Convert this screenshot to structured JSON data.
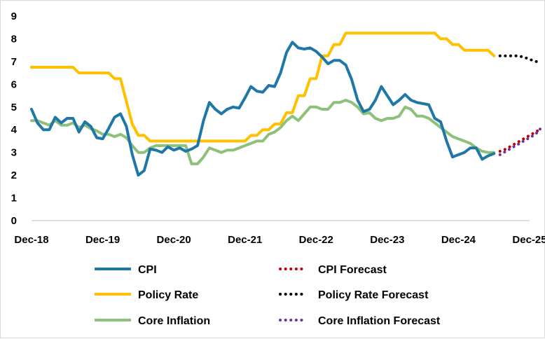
{
  "chart_data": {
    "type": "line",
    "title": "",
    "xlabel": "",
    "ylabel": "",
    "x_start": "2018-12",
    "x_ticks": [
      "Dec-18",
      "Dec-19",
      "Dec-20",
      "Dec-21",
      "Dec-22",
      "Dec-23",
      "Dec-24",
      "Dec-25"
    ],
    "y_ticks": [
      "0",
      "1",
      "2",
      "3",
      "4",
      "5",
      "6",
      "7",
      "8",
      "9"
    ],
    "ylim": [
      0,
      9
    ],
    "grid": false,
    "legend_position": "bottom",
    "series": [
      {
        "name": "CPI",
        "color": "#1f77a8",
        "style": "solid",
        "points": [
          [
            "2018-12",
            4.9
          ],
          [
            "2019-01",
            4.3
          ],
          [
            "2019-02",
            4.0
          ],
          [
            "2019-03",
            4.0
          ],
          [
            "2019-04",
            4.55
          ],
          [
            "2019-05",
            4.3
          ],
          [
            "2019-06",
            4.5
          ],
          [
            "2019-07",
            4.5
          ],
          [
            "2019-08",
            3.9
          ],
          [
            "2019-09",
            4.35
          ],
          [
            "2019-10",
            4.15
          ],
          [
            "2019-11",
            3.65
          ],
          [
            "2019-12",
            3.6
          ],
          [
            "2020-01",
            4.05
          ],
          [
            "2020-02",
            4.55
          ],
          [
            "2020-03",
            4.7
          ],
          [
            "2020-04",
            4.15
          ],
          [
            "2020-05",
            2.9
          ],
          [
            "2020-06",
            2.0
          ],
          [
            "2020-07",
            2.2
          ],
          [
            "2020-08",
            3.15
          ],
          [
            "2020-09",
            3.1
          ],
          [
            "2020-10",
            3.0
          ],
          [
            "2020-11",
            3.25
          ],
          [
            "2020-12",
            3.1
          ],
          [
            "2021-01",
            3.2
          ],
          [
            "2021-02",
            3.05
          ],
          [
            "2021-03",
            3.15
          ],
          [
            "2021-04",
            3.3
          ],
          [
            "2021-05",
            4.4
          ],
          [
            "2021-06",
            5.2
          ],
          [
            "2021-07",
            4.9
          ],
          [
            "2021-08",
            4.7
          ],
          [
            "2021-09",
            4.9
          ],
          [
            "2021-10",
            5.0
          ],
          [
            "2021-11",
            4.95
          ],
          [
            "2021-12",
            5.4
          ],
          [
            "2022-01",
            5.9
          ],
          [
            "2022-02",
            5.7
          ],
          [
            "2022-03",
            5.65
          ],
          [
            "2022-04",
            5.95
          ],
          [
            "2022-05",
            5.9
          ],
          [
            "2022-06",
            6.5
          ],
          [
            "2022-07",
            7.4
          ],
          [
            "2022-08",
            7.85
          ],
          [
            "2022-09",
            7.6
          ],
          [
            "2022-10",
            7.55
          ],
          [
            "2022-11",
            7.6
          ],
          [
            "2022-12",
            7.45
          ],
          [
            "2023-01",
            7.2
          ],
          [
            "2023-02",
            6.9
          ],
          [
            "2023-03",
            7.05
          ],
          [
            "2023-04",
            7.05
          ],
          [
            "2023-05",
            6.85
          ],
          [
            "2023-06",
            6.2
          ],
          [
            "2023-07",
            5.3
          ],
          [
            "2023-08",
            4.8
          ],
          [
            "2023-09",
            4.9
          ],
          [
            "2023-10",
            5.3
          ],
          [
            "2023-11",
            5.9
          ],
          [
            "2023-12",
            5.5
          ],
          [
            "2024-01",
            5.1
          ],
          [
            "2024-02",
            5.3
          ],
          [
            "2024-03",
            5.55
          ],
          [
            "2024-04",
            5.3
          ],
          [
            "2024-05",
            5.2
          ],
          [
            "2024-06",
            5.15
          ],
          [
            "2024-07",
            5.1
          ],
          [
            "2024-08",
            4.5
          ],
          [
            "2024-09",
            4.35
          ],
          [
            "2024-10",
            3.5
          ],
          [
            "2024-11",
            2.8
          ],
          [
            "2024-12",
            2.9
          ],
          [
            "2025-01",
            3.0
          ],
          [
            "2025-02",
            3.2
          ],
          [
            "2025-03",
            3.2
          ],
          [
            "2025-04",
            2.7
          ],
          [
            "2025-05",
            2.85
          ],
          [
            "2025-06",
            2.95
          ]
        ]
      },
      {
        "name": "Policy Rate",
        "color": "#ffc000",
        "style": "solid",
        "points": [
          [
            "2018-12",
            6.75
          ],
          [
            "2019-01",
            6.75
          ],
          [
            "2019-02",
            6.75
          ],
          [
            "2019-03",
            6.75
          ],
          [
            "2019-04",
            6.75
          ],
          [
            "2019-05",
            6.75
          ],
          [
            "2019-06",
            6.75
          ],
          [
            "2019-07",
            6.75
          ],
          [
            "2019-08",
            6.5
          ],
          [
            "2019-09",
            6.5
          ],
          [
            "2019-10",
            6.5
          ],
          [
            "2019-11",
            6.5
          ],
          [
            "2019-12",
            6.5
          ],
          [
            "2020-01",
            6.5
          ],
          [
            "2020-02",
            6.25
          ],
          [
            "2020-03",
            6.25
          ],
          [
            "2020-04",
            5.25
          ],
          [
            "2020-05",
            4.25
          ],
          [
            "2020-06",
            3.75
          ],
          [
            "2020-07",
            3.75
          ],
          [
            "2020-08",
            3.5
          ],
          [
            "2020-09",
            3.5
          ],
          [
            "2020-10",
            3.5
          ],
          [
            "2020-11",
            3.5
          ],
          [
            "2020-12",
            3.5
          ],
          [
            "2021-01",
            3.5
          ],
          [
            "2021-02",
            3.5
          ],
          [
            "2021-03",
            3.5
          ],
          [
            "2021-04",
            3.5
          ],
          [
            "2021-05",
            3.5
          ],
          [
            "2021-06",
            3.5
          ],
          [
            "2021-07",
            3.5
          ],
          [
            "2021-08",
            3.5
          ],
          [
            "2021-09",
            3.5
          ],
          [
            "2021-10",
            3.5
          ],
          [
            "2021-11",
            3.5
          ],
          [
            "2021-12",
            3.5
          ],
          [
            "2022-01",
            3.75
          ],
          [
            "2022-02",
            3.75
          ],
          [
            "2022-03",
            4.0
          ],
          [
            "2022-04",
            4.0
          ],
          [
            "2022-05",
            4.25
          ],
          [
            "2022-06",
            4.25
          ],
          [
            "2022-07",
            4.75
          ],
          [
            "2022-08",
            4.75
          ],
          [
            "2022-09",
            5.5
          ],
          [
            "2022-10",
            5.5
          ],
          [
            "2022-11",
            6.25
          ],
          [
            "2022-12",
            6.25
          ],
          [
            "2023-01",
            7.25
          ],
          [
            "2023-02",
            7.25
          ],
          [
            "2023-03",
            7.75
          ],
          [
            "2023-04",
            7.75
          ],
          [
            "2023-05",
            8.25
          ],
          [
            "2023-06",
            8.25
          ],
          [
            "2023-07",
            8.25
          ],
          [
            "2023-08",
            8.25
          ],
          [
            "2023-09",
            8.25
          ],
          [
            "2023-10",
            8.25
          ],
          [
            "2023-11",
            8.25
          ],
          [
            "2023-12",
            8.25
          ],
          [
            "2024-01",
            8.25
          ],
          [
            "2024-02",
            8.25
          ],
          [
            "2024-03",
            8.25
          ],
          [
            "2024-04",
            8.25
          ],
          [
            "2024-05",
            8.25
          ],
          [
            "2024-06",
            8.25
          ],
          [
            "2024-07",
            8.25
          ],
          [
            "2024-08",
            8.25
          ],
          [
            "2024-09",
            8.0
          ],
          [
            "2024-10",
            8.0
          ],
          [
            "2024-11",
            7.75
          ],
          [
            "2024-12",
            7.75
          ],
          [
            "2025-01",
            7.5
          ],
          [
            "2025-02",
            7.5
          ],
          [
            "2025-03",
            7.5
          ],
          [
            "2025-04",
            7.5
          ],
          [
            "2025-05",
            7.5
          ],
          [
            "2025-06",
            7.25
          ]
        ]
      },
      {
        "name": "Core Inflation",
        "color": "#8dc07a",
        "style": "solid",
        "points": [
          [
            "2018-12",
            4.4
          ],
          [
            "2019-01",
            4.4
          ],
          [
            "2019-02",
            4.3
          ],
          [
            "2019-03",
            4.2
          ],
          [
            "2019-04",
            4.4
          ],
          [
            "2019-05",
            4.2
          ],
          [
            "2019-06",
            4.2
          ],
          [
            "2019-07",
            4.3
          ],
          [
            "2019-08",
            4.1
          ],
          [
            "2019-09",
            4.2
          ],
          [
            "2019-10",
            4.05
          ],
          [
            "2019-11",
            3.95
          ],
          [
            "2019-12",
            3.8
          ],
          [
            "2020-01",
            3.8
          ],
          [
            "2020-02",
            3.7
          ],
          [
            "2020-03",
            3.8
          ],
          [
            "2020-04",
            3.65
          ],
          [
            "2020-05",
            3.3
          ],
          [
            "2020-06",
            3.0
          ],
          [
            "2020-07",
            3.0
          ],
          [
            "2020-08",
            3.2
          ],
          [
            "2020-09",
            3.3
          ],
          [
            "2020-10",
            3.3
          ],
          [
            "2020-11",
            3.3
          ],
          [
            "2020-12",
            3.3
          ],
          [
            "2021-01",
            3.3
          ],
          [
            "2021-02",
            3.3
          ],
          [
            "2021-03",
            2.5
          ],
          [
            "2021-04",
            2.5
          ],
          [
            "2021-05",
            2.8
          ],
          [
            "2021-06",
            3.2
          ],
          [
            "2021-07",
            3.1
          ],
          [
            "2021-08",
            3.0
          ],
          [
            "2021-09",
            3.1
          ],
          [
            "2021-10",
            3.1
          ],
          [
            "2021-11",
            3.2
          ],
          [
            "2021-12",
            3.3
          ],
          [
            "2022-01",
            3.4
          ],
          [
            "2022-02",
            3.5
          ],
          [
            "2022-03",
            3.5
          ],
          [
            "2022-04",
            3.8
          ],
          [
            "2022-05",
            3.9
          ],
          [
            "2022-06",
            4.1
          ],
          [
            "2022-07",
            4.4
          ],
          [
            "2022-08",
            4.6
          ],
          [
            "2022-09",
            4.4
          ],
          [
            "2022-10",
            4.7
          ],
          [
            "2022-11",
            5.0
          ],
          [
            "2022-12",
            5.0
          ],
          [
            "2023-01",
            4.9
          ],
          [
            "2023-02",
            4.9
          ],
          [
            "2023-03",
            5.2
          ],
          [
            "2023-04",
            5.2
          ],
          [
            "2023-05",
            5.3
          ],
          [
            "2023-06",
            5.2
          ],
          [
            "2023-07",
            5.0
          ],
          [
            "2023-08",
            4.7
          ],
          [
            "2023-09",
            4.75
          ],
          [
            "2023-10",
            4.5
          ],
          [
            "2023-11",
            4.4
          ],
          [
            "2023-12",
            4.5
          ],
          [
            "2024-01",
            4.5
          ],
          [
            "2024-02",
            4.6
          ],
          [
            "2024-03",
            5.0
          ],
          [
            "2024-04",
            4.9
          ],
          [
            "2024-05",
            4.6
          ],
          [
            "2024-06",
            4.6
          ],
          [
            "2024-07",
            4.5
          ],
          [
            "2024-08",
            4.3
          ],
          [
            "2024-09",
            4.1
          ],
          [
            "2024-10",
            3.9
          ],
          [
            "2024-11",
            3.7
          ],
          [
            "2024-12",
            3.6
          ],
          [
            "2025-01",
            3.5
          ],
          [
            "2025-02",
            3.4
          ],
          [
            "2025-03",
            3.2
          ],
          [
            "2025-04",
            3.05
          ],
          [
            "2025-05",
            3.0
          ],
          [
            "2025-06",
            3.0
          ]
        ]
      },
      {
        "name": "CPI Forecast",
        "color": "#c00000",
        "style": "dotted",
        "points": [
          [
            "2025-07",
            3.05
          ],
          [
            "2025-08",
            3.15
          ],
          [
            "2025-09",
            3.3
          ],
          [
            "2025-10",
            3.45
          ],
          [
            "2025-11",
            3.6
          ],
          [
            "2025-12",
            3.75
          ],
          [
            "2026-01",
            3.9
          ],
          [
            "2026-02",
            4.05
          ]
        ]
      },
      {
        "name": "Policy Rate Forecast",
        "color": "#000000",
        "style": "dotted",
        "points": [
          [
            "2025-07",
            7.25
          ],
          [
            "2025-08",
            7.25
          ],
          [
            "2025-09",
            7.25
          ],
          [
            "2025-10",
            7.25
          ],
          [
            "2025-11",
            7.2
          ],
          [
            "2025-12",
            7.1
          ],
          [
            "2026-01",
            7.0
          ],
          [
            "2026-02",
            7.0
          ]
        ]
      },
      {
        "name": "Core Inflation Forecast",
        "color": "#7030a0",
        "style": "dotted",
        "points": [
          [
            "2025-07",
            2.9
          ],
          [
            "2025-08",
            3.05
          ],
          [
            "2025-09",
            3.2
          ],
          [
            "2025-10",
            3.35
          ],
          [
            "2025-11",
            3.5
          ],
          [
            "2025-12",
            3.65
          ],
          [
            "2026-01",
            3.8
          ],
          [
            "2026-02",
            4.1
          ]
        ]
      }
    ]
  }
}
